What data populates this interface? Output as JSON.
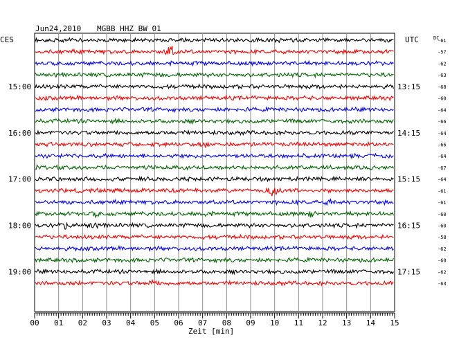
{
  "header": {
    "date": "Jun24,2010",
    "station": "MGBB HHZ BW 01",
    "left_zone": "CES",
    "right_zone": "UTC",
    "dc_label": "DC"
  },
  "footer": {
    "xlabel": "Zeit [min]"
  },
  "chart_data": {
    "type": "line",
    "title": "Jun24,2010   MGBB HHZ BW 01",
    "xlabel": "Zeit [min]",
    "xlim": [
      0,
      15
    ],
    "x_ticks": [
      "00",
      "01",
      "02",
      "03",
      "04",
      "05",
      "06",
      "07",
      "08",
      "09",
      "10",
      "11",
      "12",
      "13",
      "14",
      "15"
    ],
    "grid": true,
    "trace_colors": [
      "#000000",
      "#ff0000",
      "#0000ff",
      "#006400"
    ],
    "left_time_labels": [
      {
        "row": 4,
        "label": "15:00"
      },
      {
        "row": 8,
        "label": "16:00"
      },
      {
        "row": 12,
        "label": "17:00"
      },
      {
        "row": 16,
        "label": "18:00"
      },
      {
        "row": 20,
        "label": "19:00"
      }
    ],
    "right_time_labels": [
      {
        "row": 4,
        "label": "13:15"
      },
      {
        "row": 8,
        "label": "14:15"
      },
      {
        "row": 12,
        "label": "15:15"
      },
      {
        "row": 16,
        "label": "16:15"
      },
      {
        "row": 20,
        "label": "17:15"
      }
    ],
    "dc_offsets": [
      "-61",
      "-57",
      "-62",
      "-63",
      "-68",
      "-60",
      "-64",
      "-66",
      "-64",
      "-66",
      "-64",
      "-67",
      "-64",
      "-61",
      "-61",
      "-60",
      "-60",
      "-58",
      "-62",
      "-60",
      "-62",
      "-63"
    ],
    "events": [
      {
        "row": 1,
        "minute": 5.65,
        "amplitude": 1.0
      },
      {
        "row": 9,
        "minute": 7.1,
        "amplitude": 0.35
      },
      {
        "row": 13,
        "minute": 9.9,
        "amplitude": 1.0
      },
      {
        "row": 14,
        "minute": 12.3,
        "amplitude": 0.45
      },
      {
        "row": 15,
        "minute": 2.5,
        "amplitude": 0.3
      },
      {
        "row": 15,
        "minute": 7.1,
        "amplitude": 0.3
      },
      {
        "row": 15,
        "minute": 11.5,
        "amplitude": 0.35
      },
      {
        "row": 16,
        "minute": 1.3,
        "amplitude": 0.4
      },
      {
        "row": 16,
        "minute": 2.4,
        "amplitude": 0.35
      },
      {
        "row": 21,
        "minute": 4.9,
        "amplitude": 0.3
      }
    ]
  }
}
